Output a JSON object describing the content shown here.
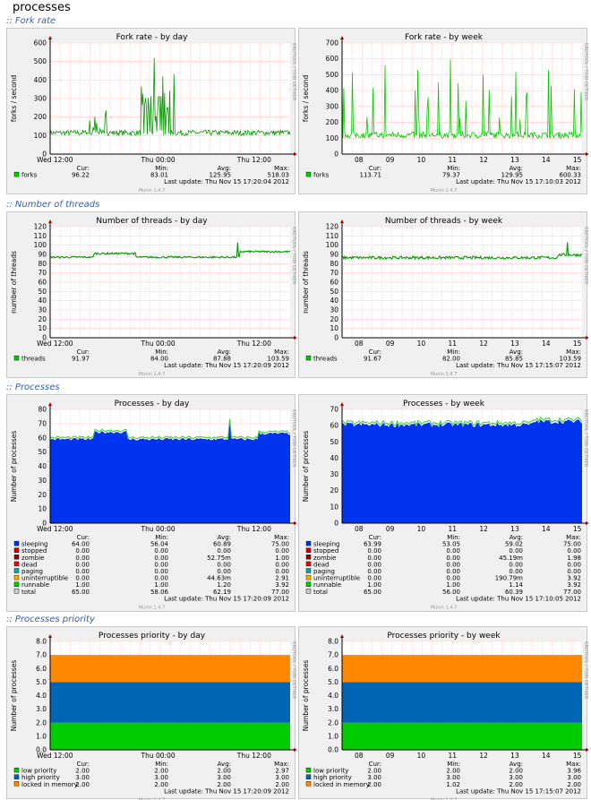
{
  "page": {
    "title": "processes"
  },
  "sections": [
    {
      "title": ":: Fork rate"
    },
    {
      "title": ":: Number of threads"
    },
    {
      "title": ":: Processes"
    },
    {
      "title": ":: Processes priority"
    }
  ],
  "colors": {
    "green": "#00cc00",
    "dark_green": "#009900",
    "blue": "#0033ee",
    "orange": "#ff8800",
    "mid_blue": "#0066b3",
    "bright_green": "#00cc00",
    "grid": "#ffb0b0",
    "axis_arrow": "#aa0000"
  },
  "side_label": "RRDTOOL / TOBI OETIKER",
  "footer_label": "Munin 1.4.7",
  "graphs": [
    {
      "title": "Fork rate - by day",
      "ylabel": "forks / second",
      "yticks": [
        "0",
        "100",
        "200",
        "300",
        "400",
        "500",
        "600"
      ],
      "xticks": [
        "Wed 12:00",
        "Thu 00:00",
        "Thu 12:00"
      ],
      "legend": [
        {
          "name": "forks",
          "color": "#00cc00",
          "cur": "96.22",
          "min": "83.01",
          "avg": "125.95",
          "max": "518.03"
        }
      ],
      "last_update": "Last update: Thu Nov 15 17:20:04 2012"
    },
    {
      "title": "Fork rate - by week",
      "ylabel": "forks / second",
      "yticks": [
        "0",
        "100",
        "200",
        "300",
        "400",
        "500",
        "600",
        "700"
      ],
      "xticks": [
        "08",
        "09",
        "10",
        "11",
        "12",
        "13",
        "14",
        "15"
      ],
      "legend": [
        {
          "name": "forks",
          "color": "#00cc00",
          "cur": "113.71",
          "min": "79.37",
          "avg": "129.95",
          "max": "600.33"
        }
      ],
      "last_update": "Last update: Thu Nov 15 17:10:03 2012"
    },
    {
      "title": "Number of threads - by day",
      "ylabel": "number of threads",
      "yticks": [
        "0",
        "10",
        "20",
        "30",
        "40",
        "50",
        "60",
        "70",
        "80",
        "90",
        "100",
        "110",
        "120"
      ],
      "xticks": [
        "Wed 12:00",
        "Thu 00:00",
        "Thu 12:00"
      ],
      "legend": [
        {
          "name": "threads",
          "color": "#00cc00",
          "cur": "91.97",
          "min": "84.00",
          "avg": "87.88",
          "max": "103.59"
        }
      ],
      "last_update": "Last update: Thu Nov 15 17:20:09 2012"
    },
    {
      "title": "Number of threads - by week",
      "ylabel": "number of threads",
      "yticks": [
        "0",
        "10",
        "20",
        "30",
        "40",
        "50",
        "60",
        "70",
        "80",
        "90",
        "100",
        "110",
        "120"
      ],
      "xticks": [
        "08",
        "09",
        "10",
        "11",
        "12",
        "13",
        "14",
        "15"
      ],
      "legend": [
        {
          "name": "threads",
          "color": "#00cc00",
          "cur": "91.67",
          "min": "82.00",
          "avg": "85.85",
          "max": "103.59"
        }
      ],
      "last_update": "Last update: Thu Nov 15 17:15:07 2012"
    },
    {
      "title": "Processes - by day",
      "ylabel": "Number of processes",
      "yticks": [
        "0",
        "10",
        "20",
        "30",
        "40",
        "50",
        "60",
        "70",
        "80"
      ],
      "xticks": [
        "Wed 12:00",
        "Thu 00:00",
        "Thu 12:00"
      ],
      "legend": [
        {
          "name": "sleeping",
          "color": "#0033ee",
          "cur": "64.00",
          "min": "56.04",
          "avg": "60.89",
          "max": "75.00"
        },
        {
          "name": "stopped",
          "color": "#cc0000",
          "cur": "0.00",
          "min": "0.00",
          "avg": "0.00",
          "max": "0.00"
        },
        {
          "name": "zombie",
          "color": "#990000",
          "cur": "0.00",
          "min": "0.00",
          "avg": "52.75m",
          "max": "1.00"
        },
        {
          "name": "dead",
          "color": "#ff0000",
          "cur": "0.00",
          "min": "0.00",
          "avg": "0.00",
          "max": "0.00"
        },
        {
          "name": "paging",
          "color": "#00aaaa",
          "cur": "0.00",
          "min": "0.00",
          "avg": "0.00",
          "max": "0.00"
        },
        {
          "name": "uninterruptible",
          "color": "#ffaa00",
          "cur": "0.00",
          "min": "0.00",
          "avg": "44.63m",
          "max": "2.91"
        },
        {
          "name": "runnable",
          "color": "#00cc00",
          "cur": "1.00",
          "min": "1.00",
          "avg": "1.20",
          "max": "3.92"
        },
        {
          "name": "total",
          "color": "#cccccc",
          "cur": "65.00",
          "min": "58.06",
          "avg": "62.19",
          "max": "77.00"
        }
      ],
      "last_update": "Last update: Thu Nov 15 17:20:09 2012"
    },
    {
      "title": "Processes - by week",
      "ylabel": "Number of processes",
      "yticks": [
        "0",
        "10",
        "20",
        "30",
        "40",
        "50",
        "60",
        "70"
      ],
      "xticks": [
        "08",
        "09",
        "10",
        "11",
        "12",
        "13",
        "14",
        "15"
      ],
      "legend": [
        {
          "name": "sleeping",
          "color": "#0033ee",
          "cur": "63.99",
          "min": "53.05",
          "avg": "59.02",
          "max": "75.00"
        },
        {
          "name": "stopped",
          "color": "#cc0000",
          "cur": "0.00",
          "min": "0.00",
          "avg": "0.00",
          "max": "0.00"
        },
        {
          "name": "zombie",
          "color": "#990000",
          "cur": "0.00",
          "min": "0.00",
          "avg": "45.19m",
          "max": "1.98"
        },
        {
          "name": "dead",
          "color": "#ff0000",
          "cur": "0.00",
          "min": "0.00",
          "avg": "0.00",
          "max": "0.00"
        },
        {
          "name": "paging",
          "color": "#00aaaa",
          "cur": "0.00",
          "min": "0.00",
          "avg": "0.00",
          "max": "0.00"
        },
        {
          "name": "uninterruptible",
          "color": "#ffaa00",
          "cur": "0.00",
          "min": "0.00",
          "avg": "190.79m",
          "max": "3.92"
        },
        {
          "name": "runnable",
          "color": "#00cc00",
          "cur": "1.00",
          "min": "1.00",
          "avg": "1.14",
          "max": "3.92"
        },
        {
          "name": "total",
          "color": "#cccccc",
          "cur": "65.00",
          "min": "56.00",
          "avg": "60.39",
          "max": "77.00"
        }
      ],
      "last_update": "Last update: Thu Nov 15 17:10:05 2012"
    },
    {
      "title": "Processes priority - by day",
      "ylabel": "Number of processes",
      "yticks": [
        "0.0",
        "1.0",
        "2.0",
        "3.0",
        "4.0",
        "5.0",
        "6.0",
        "7.0",
        "8.0"
      ],
      "xticks": [
        "Wed 12:00",
        "Thu 00:00",
        "Thu 12:00"
      ],
      "legend": [
        {
          "name": "low priority",
          "color": "#00cc00",
          "cur": "2.00",
          "min": "2.00",
          "avg": "2.00",
          "max": "2.97"
        },
        {
          "name": "high priority",
          "color": "#0066b3",
          "cur": "3.00",
          "min": "3.00",
          "avg": "3.00",
          "max": "3.00"
        },
        {
          "name": "locked in memory",
          "color": "#ff8800",
          "cur": "2.00",
          "min": "2.00",
          "avg": "2.00",
          "max": "2.00"
        }
      ],
      "last_update": "Last update: Thu Nov 15 17:20:09 2012"
    },
    {
      "title": "Processes priority - by week",
      "ylabel": "Number of processes",
      "yticks": [
        "0.0",
        "1.0",
        "2.0",
        "3.0",
        "4.0",
        "5.0",
        "6.0",
        "7.0",
        "8.0"
      ],
      "xticks": [
        "08",
        "09",
        "10",
        "11",
        "12",
        "13",
        "14",
        "15"
      ],
      "legend": [
        {
          "name": "low priority",
          "color": "#00cc00",
          "cur": "2.00",
          "min": "2.00",
          "avg": "2.00",
          "max": "3.96"
        },
        {
          "name": "high priority",
          "color": "#0066b3",
          "cur": "3.00",
          "min": "3.00",
          "avg": "3.00",
          "max": "3.00"
        },
        {
          "name": "locked in memory",
          "color": "#ff8800",
          "cur": "2.00",
          "min": "1.02",
          "avg": "2.00",
          "max": "2.00"
        }
      ],
      "last_update": "Last update: Thu Nov 15 17:15:07 2012"
    }
  ],
  "legend_headers": {
    "cur": "Cur:",
    "min": "Min:",
    "avg": "Avg:",
    "max": "Max:"
  }
}
